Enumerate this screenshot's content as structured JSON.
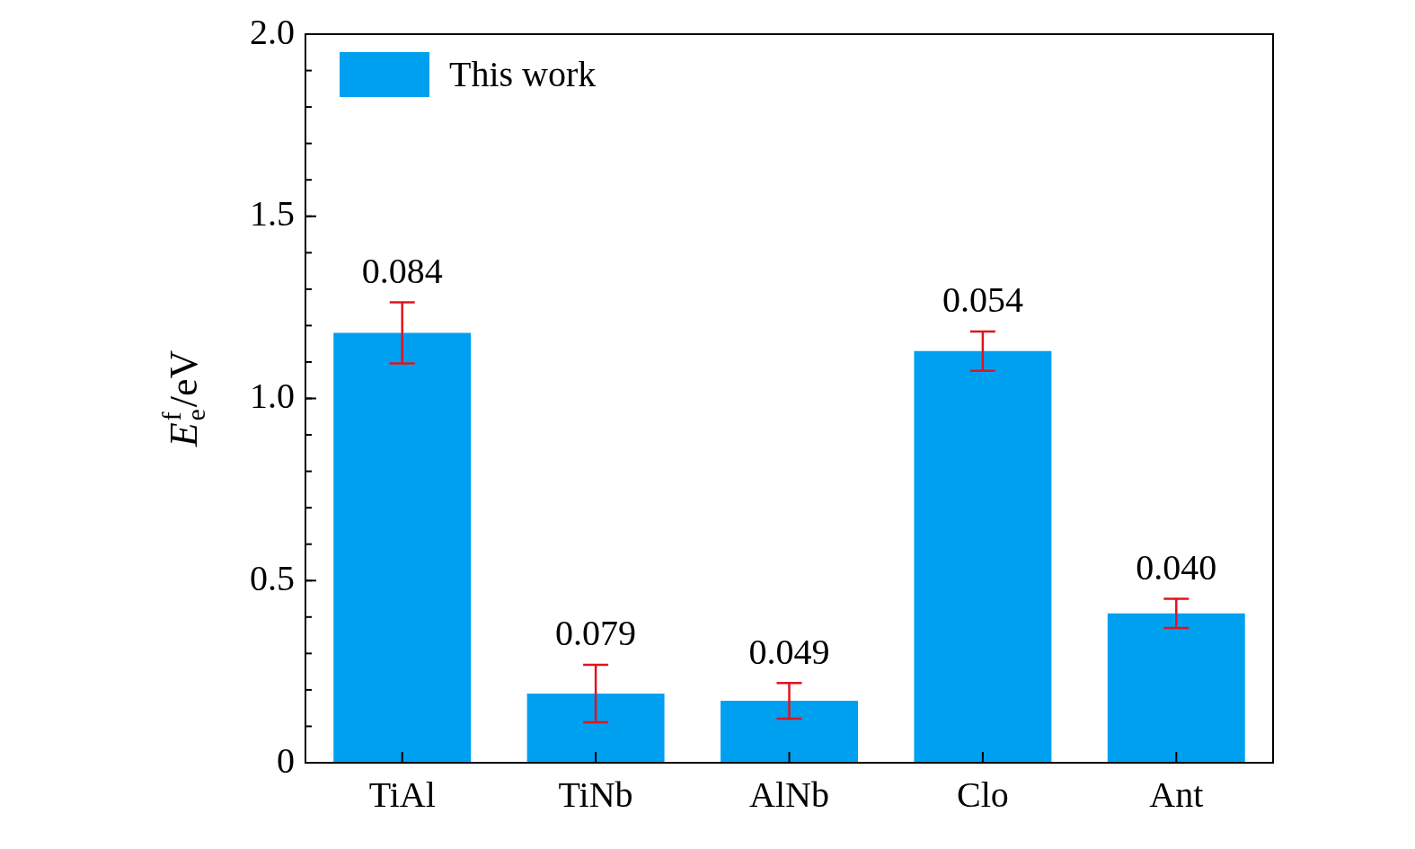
{
  "chart_data": {
    "type": "bar",
    "categories": [
      "TiAl",
      "TiNb",
      "AlNb",
      "Clo",
      "Ant"
    ],
    "series": [
      {
        "name": "This work",
        "color": "#00a0f0",
        "values": [
          1.18,
          0.19,
          0.17,
          1.13,
          0.41
        ],
        "errors": [
          0.084,
          0.079,
          0.049,
          0.054,
          0.04
        ],
        "error_labels": [
          "0.084",
          "0.079",
          "0.049",
          "0.054",
          "0.040"
        ]
      }
    ],
    "y_label": {
      "base": "E",
      "sub": "e",
      "sup": "f",
      "unit": "/eV"
    },
    "ylim": [
      0,
      2
    ],
    "yticks": [
      0,
      0.5,
      {
        "value": 1,
        "label": "1.0"
      },
      1.5,
      {
        "value": 2,
        "label": "2.0"
      }
    ],
    "grid": false,
    "legend": "upper left"
  }
}
